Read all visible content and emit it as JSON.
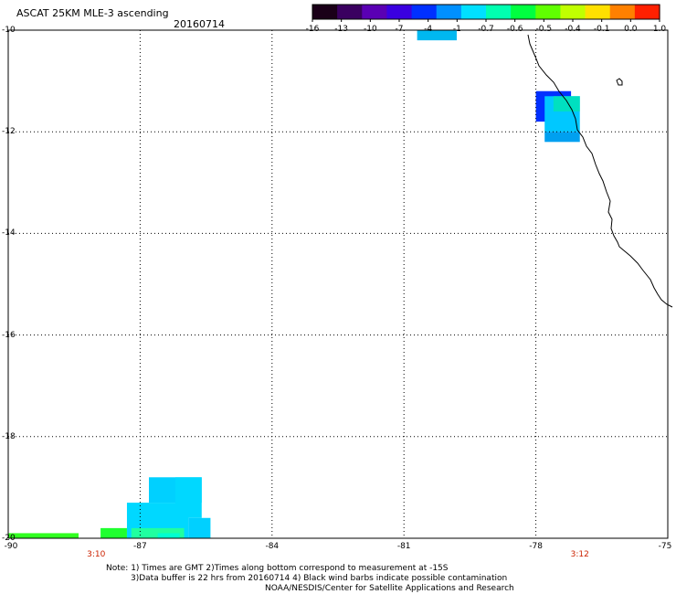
{
  "header": {
    "title": "ASCAT 25KM MLE-3 ascending",
    "date": "20160714"
  },
  "colorbar": {
    "tick_labels": [
      "-16",
      "-13",
      "-10",
      "-7",
      "-4",
      "-1",
      "-0.7",
      "-0.6",
      "-0.5",
      "-0.4",
      "-0.1",
      "0.0",
      "1.0"
    ],
    "colors": [
      "#1a0018",
      "#3a0060",
      "#5a00b4",
      "#3a00e0",
      "#0030ff",
      "#0090ff",
      "#00e0ff",
      "#00ffb0",
      "#00ff40",
      "#60ff00",
      "#c0ff00",
      "#ffe000",
      "#ff8000",
      "#ff2000"
    ]
  },
  "axes": {
    "y_labels": [
      "-10",
      "-12",
      "-14",
      "-16",
      "-18",
      "-20"
    ],
    "x_labels": [
      "-90",
      "-87",
      "-84",
      "-81",
      "-78",
      "-75"
    ],
    "xlim": [
      -90,
      -75
    ],
    "ylim": [
      -20,
      -10
    ]
  },
  "time_labels": [
    {
      "text": "3:10",
      "lon": -88
    },
    {
      "text": "3:12",
      "lon": -77
    }
  ],
  "notes": {
    "line1": "Note: 1) Times are GMT 2)Times along bottom correspond to measurement at -15S",
    "line2": "3)Data buffer is 22 hrs from 20160714 4) Black wind barbs indicate possible contamination",
    "line3": "NOAA/NESDIS/Center for Satellite Applications and Research"
  },
  "data_cells": [
    {
      "lon0": -80.7,
      "lon1": -79.8,
      "lat0": -10.2,
      "lat1": -10.0,
      "color": "#00b8f0"
    },
    {
      "lon0": -78.0,
      "lon1": -77.2,
      "lat0": -11.8,
      "lat1": -11.2,
      "color": "#0030ff"
    },
    {
      "lon0": -77.8,
      "lon1": -77.0,
      "lat0": -12.0,
      "lat1": -11.3,
      "color": "#00c8ff"
    },
    {
      "lon0": -77.6,
      "lon1": -77.0,
      "lat0": -11.6,
      "lat1": -11.3,
      "color": "#00e0c0"
    },
    {
      "lon0": -77.8,
      "lon1": -77.0,
      "lat0": -12.2,
      "lat1": -12.0,
      "color": "#00a0f0"
    },
    {
      "lon0": -90.0,
      "lon1": -88.4,
      "lat0": -20.1,
      "lat1": -19.9,
      "color": "#30ff20"
    },
    {
      "lon0": -87.9,
      "lon1": -87.3,
      "lat0": -20.1,
      "lat1": -19.8,
      "color": "#20ff30"
    },
    {
      "lon0": -87.3,
      "lon1": -85.9,
      "lat0": -20.1,
      "lat1": -19.3,
      "color": "#00d8ff"
    },
    {
      "lon0": -86.8,
      "lon1": -85.6,
      "lat0": -19.3,
      "lat1": -18.8,
      "color": "#00d0ff"
    },
    {
      "lon0": -86.2,
      "lon1": -85.6,
      "lat0": -19.6,
      "lat1": -18.8,
      "color": "#00d8ff"
    },
    {
      "lon0": -85.9,
      "lon1": -85.4,
      "lat0": -20.1,
      "lat1": -19.6,
      "color": "#00d0ff"
    },
    {
      "lon0": -87.2,
      "lon1": -86.0,
      "lat0": -20.0,
      "lat1": -19.8,
      "color": "#20ffa0"
    },
    {
      "lon0": -86.6,
      "lon1": -86.1,
      "lat0": -20.1,
      "lat1": -19.9,
      "color": "#00ffd0"
    }
  ]
}
